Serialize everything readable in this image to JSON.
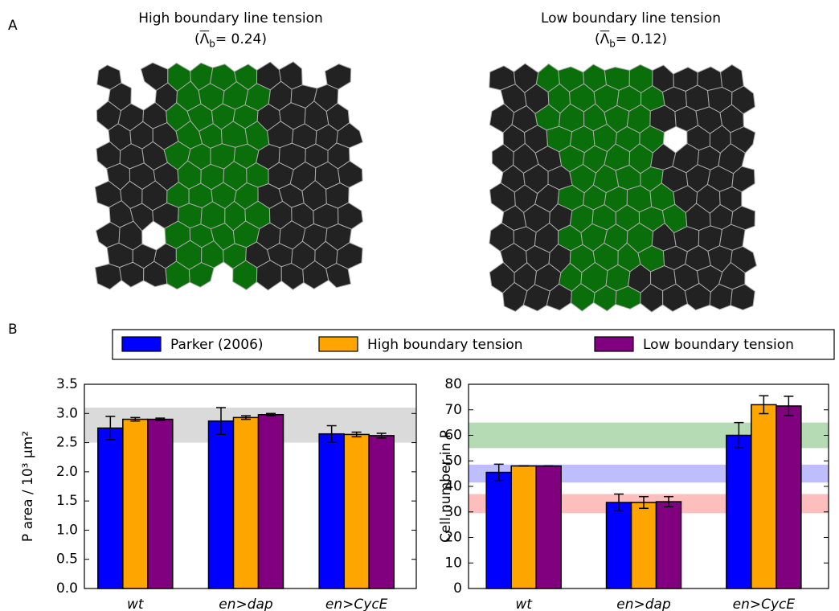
{
  "panel_labels": [
    "A",
    "B"
  ],
  "tissue_panels": [
    {
      "title": "High boundary line tension",
      "param": [
        "(",
        "Λ",
        "b",
        "= 0.24)"
      ]
    },
    {
      "title": "Low boundary line tension",
      "param": [
        "(",
        "Λ",
        "b",
        "= 0.12)"
      ]
    }
  ],
  "chart_data": [
    {
      "type": "bar",
      "ylabel": "P area / 10³ µm²",
      "categories": [
        "wt",
        "en>dap",
        "en>CycE"
      ],
      "series": [
        {
          "name": "Parker (2006)",
          "color": "#0000ff",
          "values": [
            2.75,
            2.87,
            2.65
          ],
          "errors": [
            0.2,
            0.23,
            0.14
          ]
        },
        {
          "name": "High boundary tension",
          "color": "#ffa500",
          "values": [
            2.9,
            2.93,
            2.64
          ],
          "errors": [
            0.03,
            0.03,
            0.04
          ]
        },
        {
          "name": "Low boundary tension",
          "color": "#800080",
          "values": [
            2.9,
            2.98,
            2.62
          ],
          "errors": [
            0.02,
            0.02,
            0.04
          ]
        }
      ],
      "bands": [
        {
          "from": 2.5,
          "to": 3.1,
          "color": "#d3d3d3"
        }
      ],
      "ylim": [
        0,
        3.5
      ],
      "yticks": [
        {
          "value": 0,
          "label": "0.0"
        },
        0.5,
        {
          "value": 1,
          "label": "1.0"
        },
        1.5,
        {
          "value": 2,
          "label": "2.0"
        },
        2.5,
        {
          "value": 3,
          "label": "3.0"
        },
        3.5
      ]
    },
    {
      "type": "bar",
      "ylabel": "Cell number in P",
      "categories": [
        "wt",
        "en>dap",
        "en>CycE"
      ],
      "series": [
        {
          "color": "#0000ff",
          "values": [
            45.5,
            33.7,
            60
          ],
          "errors": [
            3.2,
            3.3,
            5
          ]
        },
        {
          "color": "#ffa500",
          "values": [
            48,
            33.7,
            72
          ],
          "errors": [
            0,
            2.3,
            3.5
          ]
        },
        {
          "color": "#800080",
          "values": [
            48,
            34,
            71.5
          ],
          "errors": [
            0,
            2,
            3.8
          ]
        }
      ],
      "bands": [
        {
          "from": 55,
          "to": 65,
          "color": "#a8d5a8"
        },
        {
          "from": 41.5,
          "to": 48.5,
          "color": "#b3b3ff"
        },
        {
          "from": 29.5,
          "to": 37,
          "color": "#ffb3b3"
        }
      ],
      "ylim": [
        0,
        80
      ],
      "yticks": [
        0,
        10,
        20,
        30,
        40,
        50,
        60,
        70,
        80
      ]
    }
  ]
}
